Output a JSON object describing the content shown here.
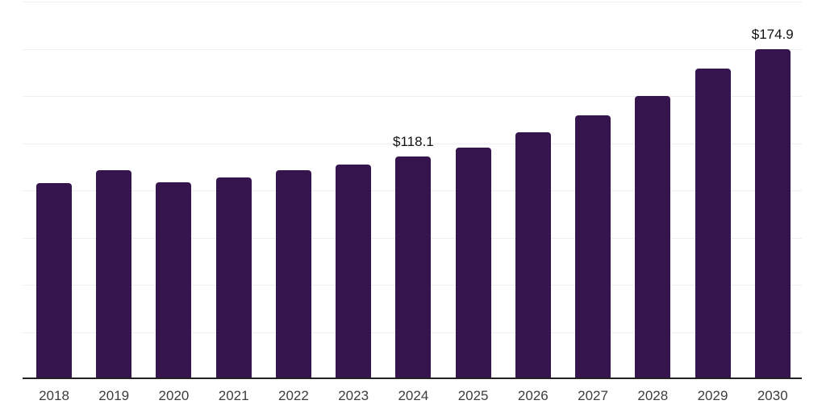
{
  "chart_data": {
    "type": "bar",
    "title": "",
    "xlabel": "",
    "ylabel": "",
    "categories": [
      "2018",
      "2019",
      "2020",
      "2021",
      "2022",
      "2023",
      "2024",
      "2025",
      "2026",
      "2027",
      "2028",
      "2029",
      "2030"
    ],
    "values": [
      104.0,
      110.5,
      104.2,
      106.8,
      110.8,
      113.5,
      118.1,
      122.5,
      130.7,
      139.8,
      150.0,
      164.4,
      174.9
    ],
    "bar_labels": [
      "",
      "",
      "",
      "",
      "",
      "",
      "$118.1",
      "",
      "",
      "",
      "",
      "",
      "$174.9"
    ],
    "ylim": [
      0,
      200
    ],
    "grid_step": 25,
    "grid": "horizontal-only",
    "legend_position": "none",
    "y_tick_labels_visible": false,
    "colors": {
      "bar_fill": "#36154e",
      "gridline": "#efefef",
      "axis_line": "#222222",
      "x_tick_label": "#3d3d3d",
      "value_label": "#121212",
      "background": "#ffffff"
    }
  }
}
